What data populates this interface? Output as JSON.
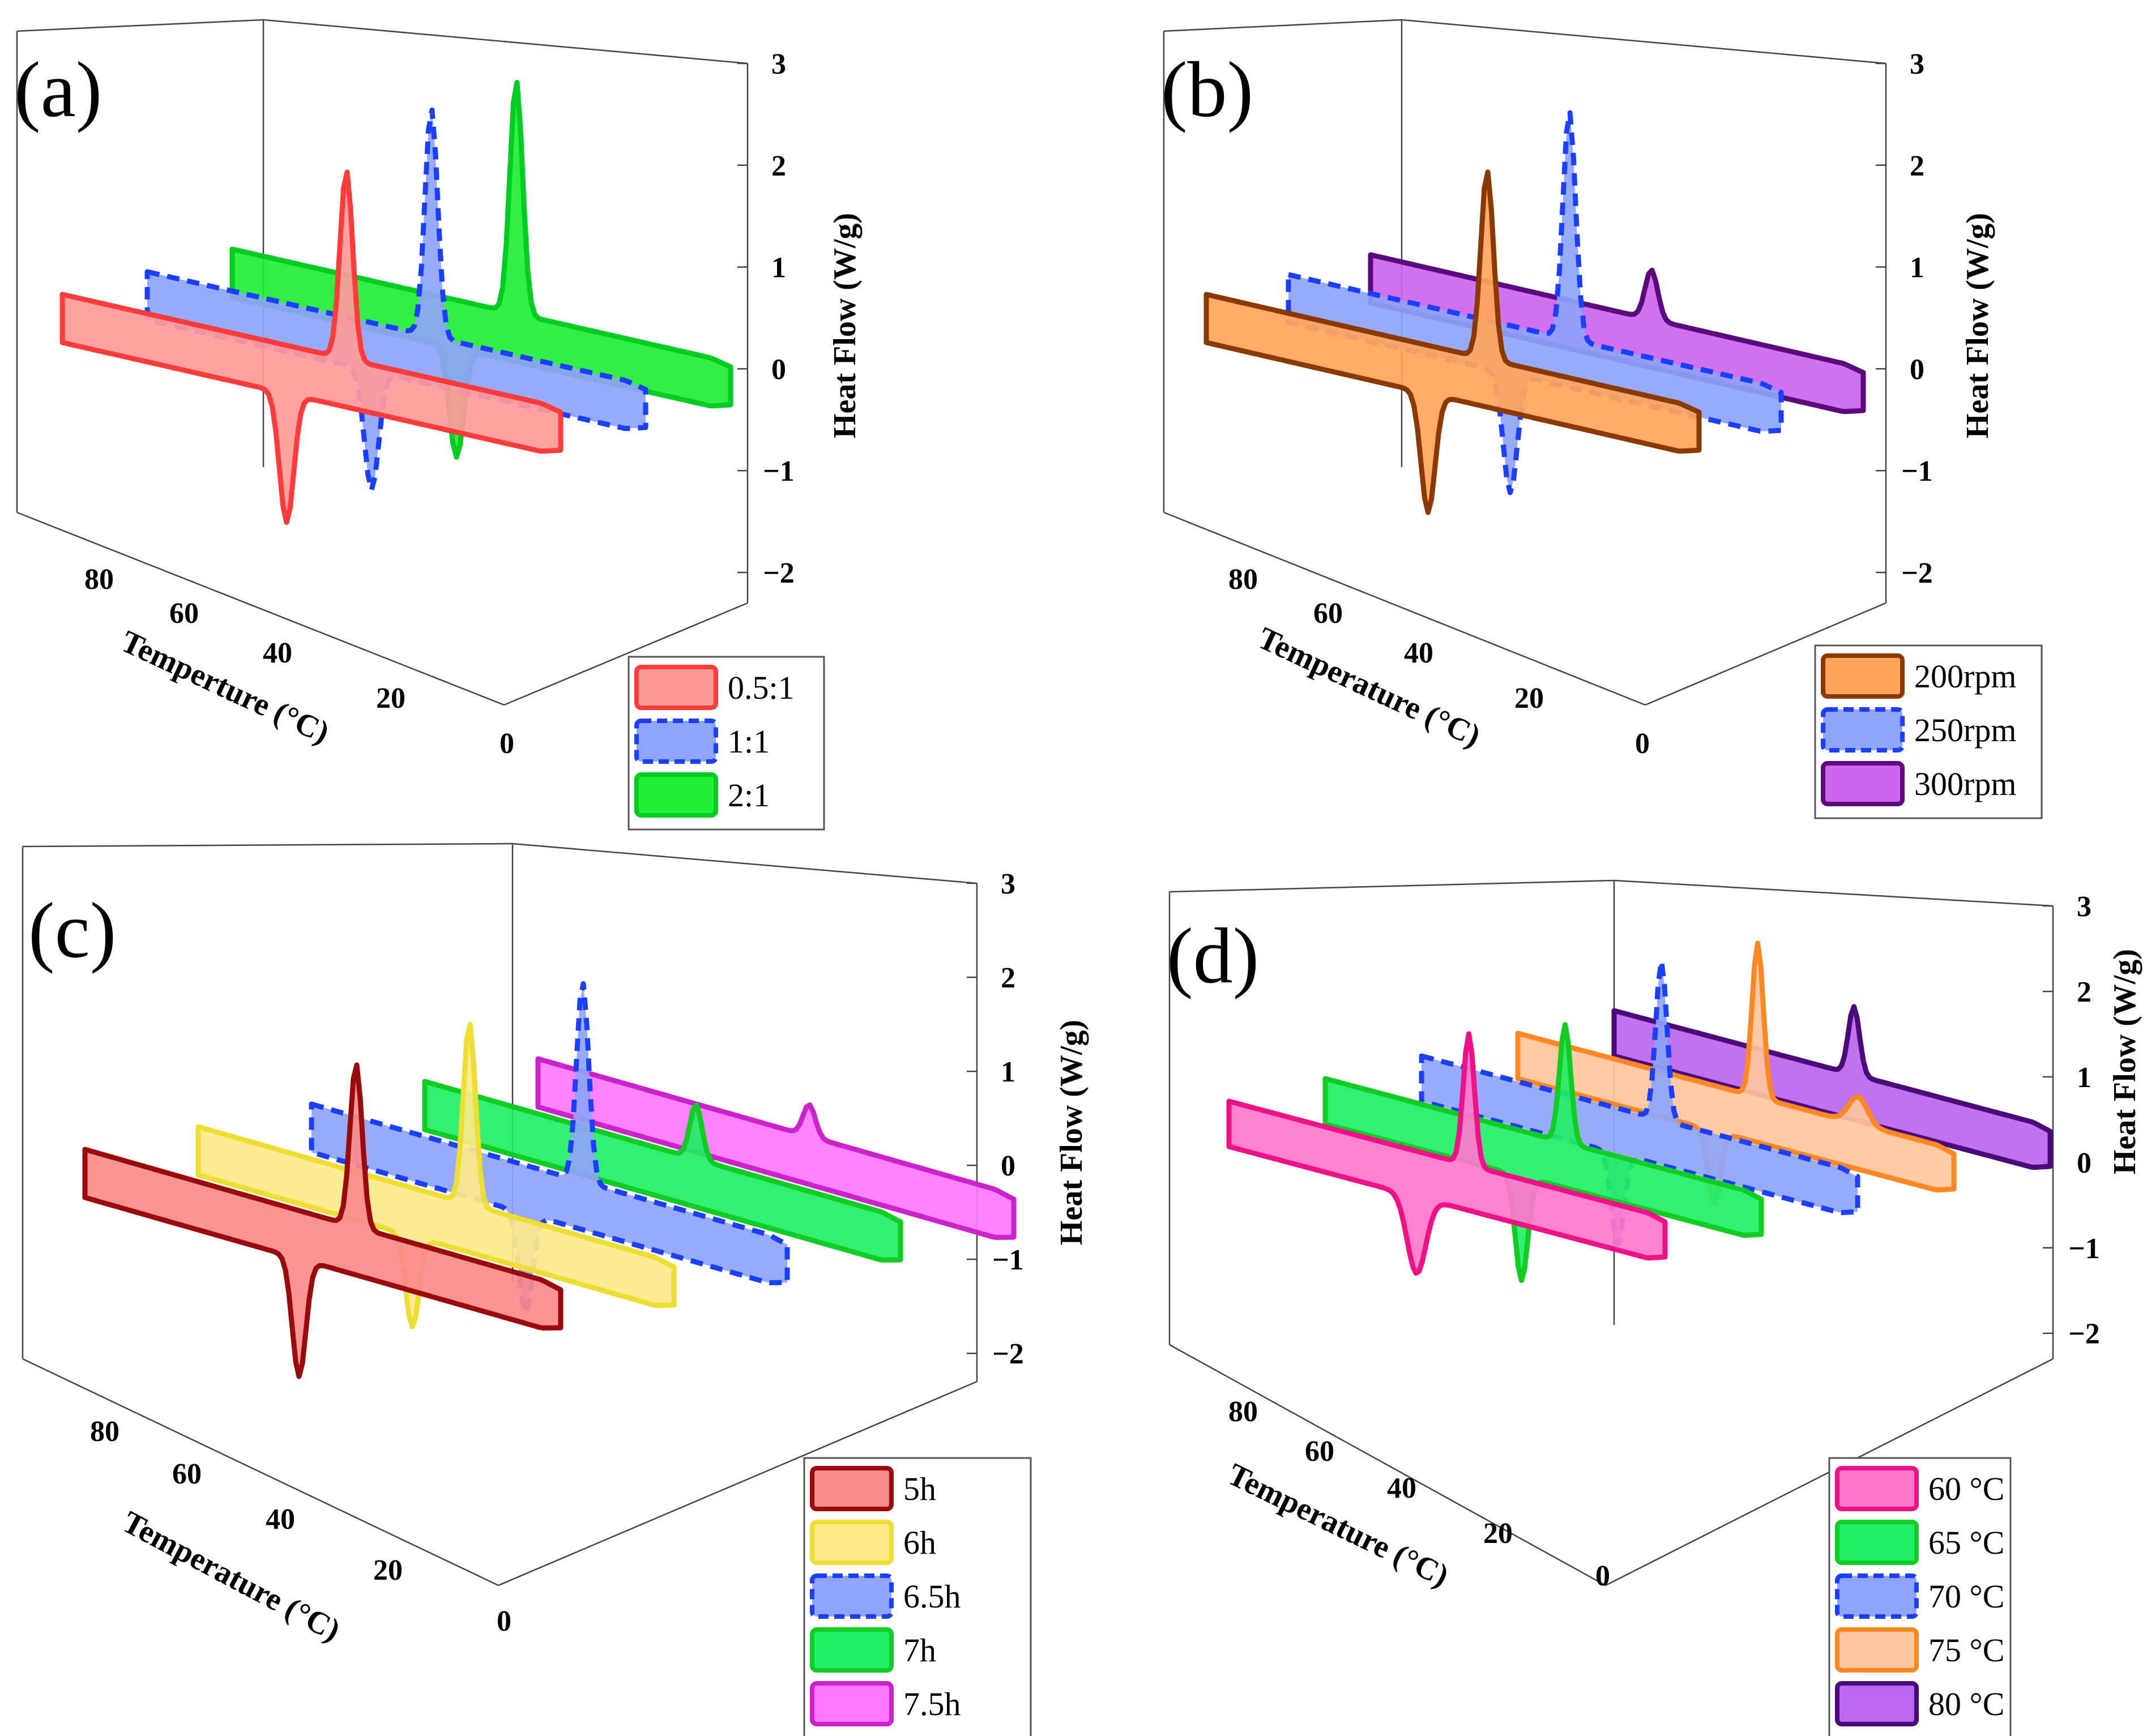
{
  "chart_data": [
    {
      "type": "area",
      "panel_label": "(a)",
      "xlabel": "Temperture (°C)",
      "ylabel": "Heat Flow (W/g)",
      "xlim": [
        0,
        90
      ],
      "ylim": [
        -2.3,
        3
      ],
      "x_ticks": [
        "80",
        "60",
        "40",
        "20",
        "0"
      ],
      "y_ticks": [
        "3",
        "2",
        "1",
        "0",
        "−1",
        "−2"
      ],
      "series": [
        {
          "name": "0.5:1",
          "fill": "#ff9a9a",
          "stroke": "#ff3b3b",
          "dashed": false,
          "peak_max": 1.9,
          "peak_min": -1.3,
          "shoulder_min": 0,
          "shoulder_max": 0
        },
        {
          "name": "1:1",
          "fill": "#8ea4f8",
          "stroke": "#1a3fff",
          "dashed": true,
          "peak_max": 2.3,
          "peak_min": -1.2,
          "shoulder_min": 0,
          "shoulder_max": 0
        },
        {
          "name": "2:1",
          "fill": "#22ee33",
          "stroke": "#00cc22",
          "dashed": false,
          "peak_max": 2.35,
          "peak_min": -1.1,
          "shoulder_min": 0,
          "shoulder_max": 0
        }
      ]
    },
    {
      "type": "area",
      "panel_label": "(b)",
      "xlabel": "Temperature (°C)",
      "ylabel": "Heat Flow (W/g)",
      "xlim": [
        0,
        90
      ],
      "ylim": [
        -2.3,
        3
      ],
      "x_ticks": [
        "80",
        "60",
        "40",
        "20",
        "0"
      ],
      "y_ticks": [
        "3",
        "2",
        "1",
        "0",
        "−1",
        "−2"
      ],
      "series": [
        {
          "name": "200rpm",
          "fill": "#ffa55a",
          "stroke": "#8a3a00",
          "dashed": false,
          "peak_max": 1.9,
          "peak_min": -1.2,
          "shoulder_min": 0,
          "shoulder_max": 0
        },
        {
          "name": "250rpm",
          "fill": "#8ea4f8",
          "stroke": "#1a3fff",
          "dashed": true,
          "peak_max": 2.3,
          "peak_min": -1.2,
          "shoulder_min": 0,
          "shoulder_max": 0
        },
        {
          "name": "300rpm",
          "fill": "#cc66ee",
          "stroke": "#5a0a7a",
          "dashed": false,
          "peak_max": 0.5,
          "peak_min": 0,
          "shoulder_min": 0,
          "shoulder_max": 0
        }
      ]
    },
    {
      "type": "area",
      "panel_label": "(c)",
      "xlabel": "Temperature (°C)",
      "ylabel": "Heat Flow (W/g)",
      "xlim": [
        0,
        90
      ],
      "ylim": [
        -2.3,
        3
      ],
      "x_ticks": [
        "80",
        "60",
        "40",
        "20",
        "0"
      ],
      "y_ticks": [
        "3",
        "2",
        "1",
        "0",
        "−1",
        "−2"
      ],
      "series": [
        {
          "name": "5h",
          "fill": "#fa8a8a",
          "stroke": "#9a0a0a",
          "dashed": false,
          "peak_max": 1.8,
          "peak_min": -1.3,
          "shoulder_min": 0,
          "shoulder_max": 0
        },
        {
          "name": "6h",
          "fill": "#fbe98a",
          "stroke": "#eedd33",
          "dashed": false,
          "peak_max": 2.0,
          "peak_min": -1.0,
          "shoulder_min": 0,
          "shoulder_max": 0
        },
        {
          "name": "6.5h",
          "fill": "#8ea4f8",
          "stroke": "#1a3fff",
          "dashed": true,
          "peak_max": 2.2,
          "peak_min": -1.1,
          "shoulder_min": 0,
          "shoulder_max": 0
        },
        {
          "name": "7h",
          "fill": "#22ee66",
          "stroke": "#11cc22",
          "dashed": false,
          "peak_max": 0.6,
          "peak_min": 0,
          "shoulder_min": 0,
          "shoulder_max": 0
        },
        {
          "name": "7.5h",
          "fill": "#ff77ff",
          "stroke": "#cc22cc",
          "dashed": false,
          "peak_max": 0.35,
          "peak_min": 0,
          "shoulder_min": 0,
          "shoulder_max": 0
        }
      ]
    },
    {
      "type": "area",
      "panel_label": "(d)",
      "xlabel": "Temperature (°C)",
      "ylabel": "Heat Flow (W/g)",
      "xlim": [
        0,
        90
      ],
      "ylim": [
        -2.3,
        3
      ],
      "x_ticks": [
        "80",
        "60",
        "40",
        "20",
        "0"
      ],
      "y_ticks": [
        "3",
        "2",
        "1",
        "0",
        "−1",
        "−2"
      ],
      "series": [
        {
          "name": "60 °C",
          "fill": "#ff77cc",
          "stroke": "#ee1188",
          "dashed": false,
          "peak_max": 1.45,
          "peak_min": 0,
          "shoulder_min": -0.85,
          "shoulder_max": 0
        },
        {
          "name": "65 °C",
          "fill": "#22ee66",
          "stroke": "#11cc22",
          "dashed": false,
          "peak_max": 1.3,
          "peak_min": -1.15,
          "shoulder_min": 0,
          "shoulder_max": 0
        },
        {
          "name": "70 °C",
          "fill": "#8ea4f8",
          "stroke": "#1a3fff",
          "dashed": true,
          "peak_max": 1.75,
          "peak_min": -1.0,
          "shoulder_min": 0,
          "shoulder_max": 0
        },
        {
          "name": "75 °C",
          "fill": "#ffc7a0",
          "stroke": "#ff8822",
          "dashed": false,
          "peak_max": 1.7,
          "peak_min": -0.8,
          "shoulder_min": 0,
          "shoulder_max": 0.3
        },
        {
          "name": "80 °C",
          "fill": "#bb66ee",
          "stroke": "#4a0a7a",
          "dashed": false,
          "peak_max": 0.75,
          "peak_min": 0,
          "shoulder_min": 0,
          "shoulder_max": 0
        }
      ]
    }
  ]
}
